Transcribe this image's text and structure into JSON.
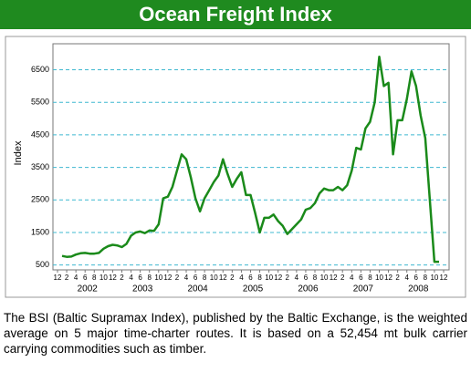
{
  "chart_data": {
    "type": "line",
    "title": "Ocean Freight Index",
    "ylabel": "Index",
    "color": "#1a8a1a",
    "caption": "The BSI (Baltic Supramax Index), published by the Baltic Exchange, is the weighted average on 5 major time-charter routes. It is based on a 52,454 mt bulk carrier carrying commodities such as timber.",
    "x": [
      "2002-01",
      "2002-02",
      "2002-03",
      "2002-04",
      "2002-05",
      "2002-06",
      "2002-07",
      "2002-08",
      "2002-09",
      "2002-10",
      "2002-11",
      "2002-12",
      "2003-01",
      "2003-02",
      "2003-03",
      "2003-04",
      "2003-05",
      "2003-06",
      "2003-07",
      "2003-08",
      "2003-09",
      "2003-10",
      "2003-11",
      "2003-12",
      "2004-01",
      "2004-02",
      "2004-03",
      "2004-04",
      "2004-05",
      "2004-06",
      "2004-07",
      "2004-08",
      "2004-09",
      "2004-10",
      "2004-11",
      "2004-12",
      "2005-01",
      "2005-02",
      "2005-03",
      "2005-04",
      "2005-05",
      "2005-06",
      "2005-07",
      "2005-08",
      "2005-09",
      "2005-10",
      "2005-11",
      "2005-12",
      "2006-01",
      "2006-02",
      "2006-03",
      "2006-04",
      "2006-05",
      "2006-06",
      "2006-07",
      "2006-08",
      "2006-09",
      "2006-10",
      "2006-11",
      "2006-12",
      "2007-01",
      "2007-02",
      "2007-03",
      "2007-04",
      "2007-05",
      "2007-06",
      "2007-07",
      "2007-08",
      "2007-09",
      "2007-10",
      "2007-11",
      "2007-12",
      "2008-01",
      "2008-02",
      "2008-03",
      "2008-04",
      "2008-05",
      "2008-06",
      "2008-07",
      "2008-08",
      "2008-09",
      "2008-10",
      "2008-11"
    ],
    "values": [
      780,
      750,
      760,
      820,
      860,
      870,
      850,
      850,
      870,
      1000,
      1080,
      1120,
      1100,
      1050,
      1150,
      1400,
      1500,
      1530,
      1480,
      1560,
      1550,
      1750,
      2550,
      2600,
      2900,
      3400,
      3900,
      3750,
      3200,
      2550,
      2150,
      2550,
      2800,
      3050,
      3250,
      3750,
      3300,
      2900,
      3150,
      3350,
      2650,
      2650,
      2100,
      1500,
      1950,
      1950,
      2050,
      1850,
      1700,
      1450,
      1600,
      1750,
      1900,
      2200,
      2250,
      2400,
      2700,
      2850,
      2800,
      2800,
      2900,
      2800,
      2950,
      3400,
      4100,
      4050,
      4700,
      4900,
      5500,
      6900,
      6000,
      6100,
      3900,
      4950,
      4950,
      5600,
      6450,
      6000,
      5100,
      4400,
      2500,
      600,
      600
    ],
    "xlim": [
      "2001-12",
      "2008-12"
    ],
    "xticks": [
      {
        "value": "2001-12",
        "label": "12"
      },
      {
        "value": "2002-02",
        "label": "2"
      },
      {
        "value": "2002-04",
        "label": "4"
      },
      {
        "value": "2002-06",
        "label": "6"
      },
      {
        "value": "2002-08",
        "label": "8"
      },
      {
        "value": "2002-10",
        "label": "10"
      },
      {
        "value": "2002-12",
        "label": "12"
      },
      {
        "value": "2003-02",
        "label": "2"
      },
      {
        "value": "2003-04",
        "label": "4"
      },
      {
        "value": "2003-06",
        "label": "6"
      },
      {
        "value": "2003-08",
        "label": "8"
      },
      {
        "value": "2003-10",
        "label": "10"
      },
      {
        "value": "2003-12",
        "label": "12"
      },
      {
        "value": "2004-02",
        "label": "2"
      },
      {
        "value": "2004-04",
        "label": "4"
      },
      {
        "value": "2004-06",
        "label": "6"
      },
      {
        "value": "2004-08",
        "label": "8"
      },
      {
        "value": "2004-10",
        "label": "10"
      },
      {
        "value": "2004-12",
        "label": "12"
      },
      {
        "value": "2005-02",
        "label": "2"
      },
      {
        "value": "2005-04",
        "label": "4"
      },
      {
        "value": "2005-06",
        "label": "6"
      },
      {
        "value": "2005-08",
        "label": "8"
      },
      {
        "value": "2005-10",
        "label": "10"
      },
      {
        "value": "2005-12",
        "label": "12"
      },
      {
        "value": "2006-02",
        "label": "2"
      },
      {
        "value": "2006-04",
        "label": "4"
      },
      {
        "value": "2006-06",
        "label": "6"
      },
      {
        "value": "2006-08",
        "label": "8"
      },
      {
        "value": "2006-10",
        "label": "10"
      },
      {
        "value": "2006-12",
        "label": "12"
      },
      {
        "value": "2007-02",
        "label": "2"
      },
      {
        "value": "2007-04",
        "label": "4"
      },
      {
        "value": "2007-06",
        "label": "6"
      },
      {
        "value": "2007-08",
        "label": "8"
      },
      {
        "value": "2007-10",
        "label": "10"
      },
      {
        "value": "2007-12",
        "label": "12"
      },
      {
        "value": "2008-02",
        "label": "2"
      },
      {
        "value": "2008-04",
        "label": "4"
      },
      {
        "value": "2008-06",
        "label": "6"
      },
      {
        "value": "2008-08",
        "label": "8"
      },
      {
        "value": "2008-10",
        "label": "10"
      },
      {
        "value": "2008-12",
        "label": "12"
      }
    ],
    "year_labels": [
      "2002",
      "2003",
      "2004",
      "2005",
      "2006",
      "2007",
      "2008"
    ],
    "ylim": [
      350,
      7300
    ],
    "yticks": [
      500,
      1500,
      2500,
      3500,
      4500,
      5500,
      6500
    ],
    "grid": true,
    "grid_color": "#3fb8d0"
  }
}
